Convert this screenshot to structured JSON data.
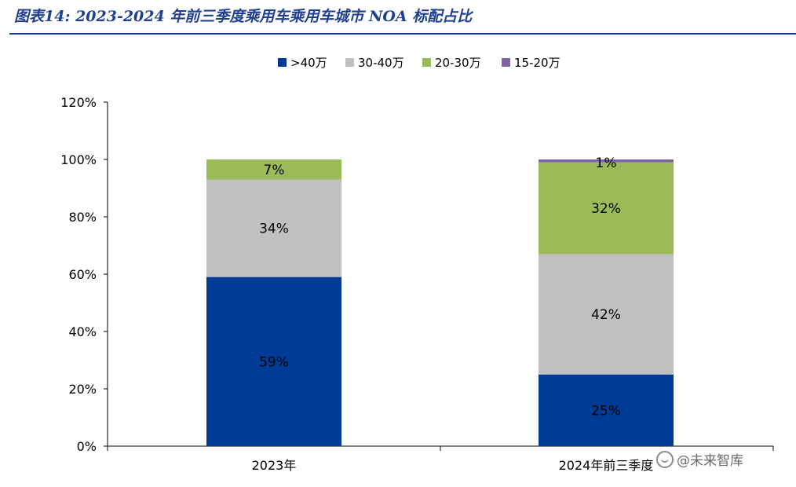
{
  "header": {
    "title": "图表14:  2023-2024 年前三季度乘用车乘用车城市 NOA 标配占比"
  },
  "watermark": {
    "text": "@未来智库"
  },
  "colors": {
    "title": "#1f3f8f",
    "series": [
      "#003c96",
      "#c0c0c0",
      "#9bbb59",
      "#8064a2"
    ]
  },
  "chart_data": {
    "type": "bar",
    "stacked": true,
    "categories": [
      "2023年",
      "2024年前三季度"
    ],
    "series": [
      {
        "name": ">40万",
        "values": [
          59,
          25
        ],
        "labels": [
          "59%",
          "25%"
        ]
      },
      {
        "name": "30-40万",
        "values": [
          34,
          42
        ],
        "labels": [
          "34%",
          "42%"
        ]
      },
      {
        "name": "20-30万",
        "values": [
          7,
          32
        ],
        "labels": [
          "7%",
          "32%"
        ]
      },
      {
        "name": "15-20万",
        "values": [
          0,
          1
        ],
        "labels": [
          "",
          "1%"
        ]
      }
    ],
    "ylim": [
      0,
      120
    ],
    "yticks": [
      "0%",
      "20%",
      "40%",
      "60%",
      "80%",
      "100%",
      "120%"
    ],
    "legend_position": "top",
    "grid": false,
    "title": "",
    "xlabel": "",
    "ylabel": ""
  }
}
